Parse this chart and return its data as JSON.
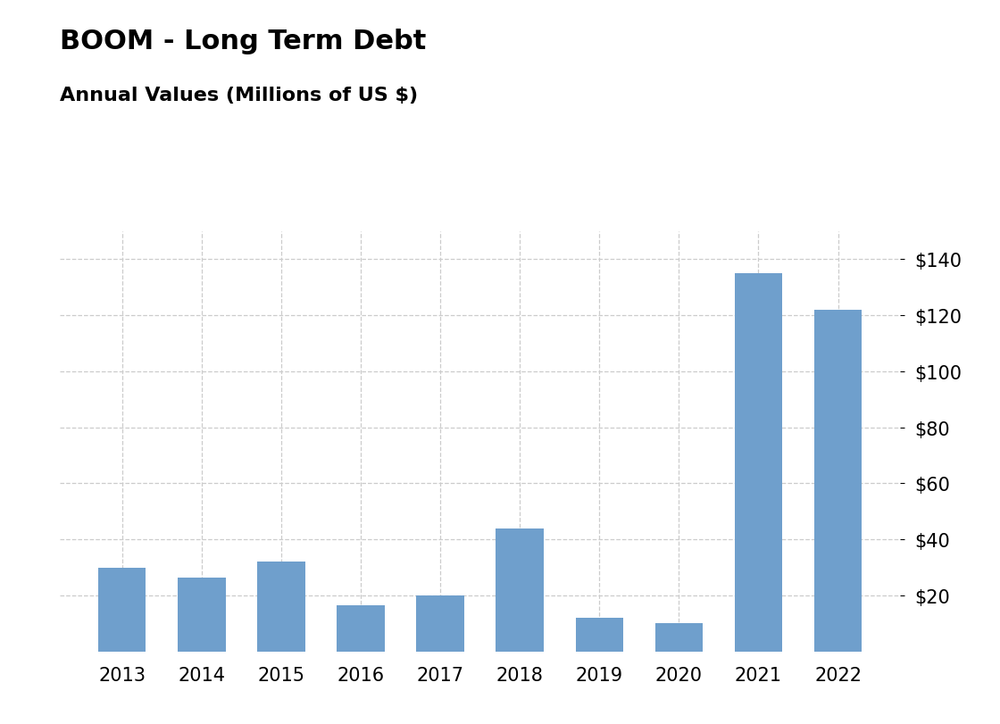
{
  "title": "BOOM - Long Term Debt",
  "subtitle": "Annual Values (Millions of US $)",
  "categories": [
    "2013",
    "2014",
    "2015",
    "2016",
    "2017",
    "2018",
    "2019",
    "2020",
    "2021",
    "2022"
  ],
  "values": [
    30.0,
    26.5,
    32.0,
    16.5,
    20.0,
    44.0,
    12.0,
    10.0,
    135.0,
    122.0
  ],
  "bar_color": "#6f9fcc",
  "background_color": "#ffffff",
  "grid_color": "#cccccc",
  "ylim": [
    0,
    150
  ],
  "yticks": [
    20,
    40,
    60,
    80,
    100,
    120,
    140
  ],
  "title_fontsize": 22,
  "subtitle_fontsize": 16,
  "tick_fontsize": 15
}
